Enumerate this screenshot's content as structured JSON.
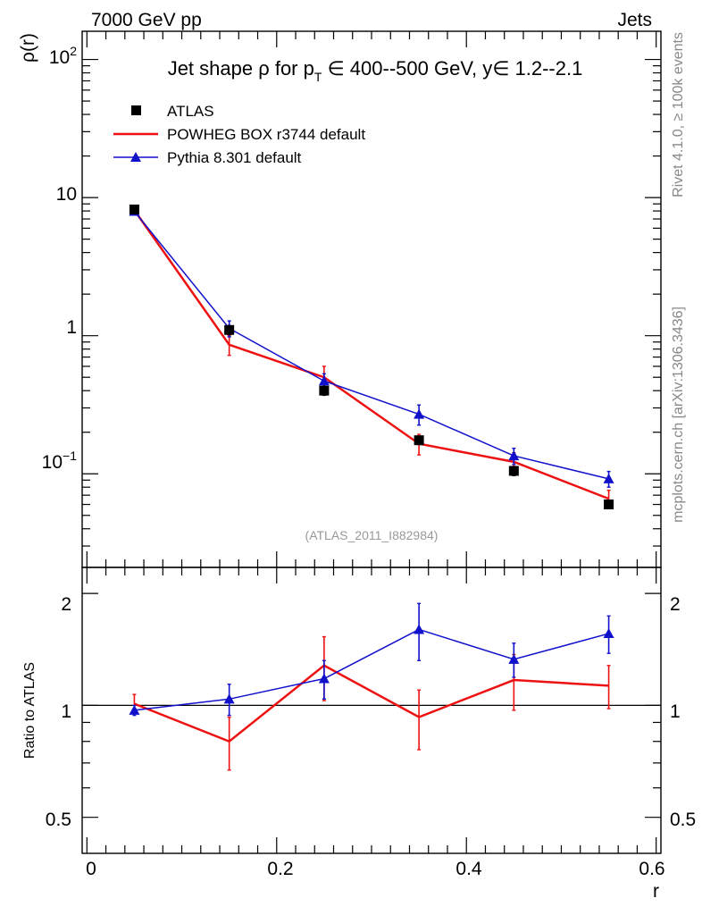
{
  "header": {
    "energy_label": "7000 GeV pp",
    "category_label": "Jets"
  },
  "side_notes": {
    "rivet": "Rivet 4.1.0, ≥ 100k events",
    "mcplots": "mcplots.cern.ch [arXiv:1306.3436]"
  },
  "colors": {
    "atlas": "#000000",
    "powheg": "#ee1111",
    "pythia": "#1111cc"
  },
  "chart_data": [
    {
      "type": "line",
      "title": "Jet shape ρ for p_T ∈ 400--500 GeV, y∈ 1.2--2.1",
      "title_parts": {
        "a": "Jet shape ",
        "rho": "ρ",
        "b": " for p",
        "sub": "T",
        "c": " ∈ 400--500 GeV, y∈ 1.2--2.1"
      },
      "ylabel": "ρ(r)",
      "yscale": "log",
      "ylim": [
        0.021,
        160
      ],
      "xlim": [
        -0.005,
        0.605
      ],
      "yticks": [
        {
          "value": 100,
          "base": "10",
          "exp": "2"
        },
        {
          "value": 10,
          "base": "10",
          "exp": ""
        },
        {
          "value": 1,
          "base": "1",
          "exp": ""
        },
        {
          "value": 0.1,
          "base": "10",
          "exp": "−1"
        }
      ],
      "watermark": "(ATLAS_2011_I882984)",
      "legend_position": "top-left",
      "x": [
        0.05,
        0.15,
        0.25,
        0.35,
        0.45,
        0.55
      ],
      "series": [
        {
          "name": "ATLAS",
          "key": "atlas",
          "marker": "square",
          "line": false,
          "values": [
            8.2,
            1.1,
            0.4,
            0.175,
            0.105,
            0.06
          ],
          "err_low": [
            0.3,
            0.08,
            0.03,
            0.012,
            0.008,
            0.004
          ],
          "err_high": [
            0.3,
            0.08,
            0.03,
            0.012,
            0.008,
            0.004
          ]
        },
        {
          "name": "POWHEG BOX r3744 default",
          "key": "powheg",
          "marker": "none",
          "line": true,
          "values": [
            8.1,
            0.86,
            0.5,
            0.165,
            0.122,
            0.066
          ],
          "err_low": [
            0.4,
            0.14,
            0.1,
            0.028,
            0.02,
            0.01
          ],
          "err_high": [
            0.4,
            0.14,
            0.1,
            0.028,
            0.02,
            0.01
          ]
        },
        {
          "name": "Pythia 8.301 default",
          "key": "pythia",
          "marker": "triangle",
          "line": true,
          "values": [
            7.95,
            1.13,
            0.47,
            0.27,
            0.135,
            0.092
          ],
          "err_low": [
            0.3,
            0.15,
            0.06,
            0.045,
            0.018,
            0.012
          ],
          "err_high": [
            0.3,
            0.15,
            0.06,
            0.045,
            0.018,
            0.012
          ]
        }
      ]
    },
    {
      "type": "line",
      "ylabel": "Ratio to ATLAS",
      "xlabel": "r",
      "yscale": "log",
      "ylim": [
        0.4,
        2.35
      ],
      "xlim": [
        -0.005,
        0.605
      ],
      "yticks": [
        {
          "value": 2,
          "label": "2"
        },
        {
          "value": 1,
          "label": "1"
        },
        {
          "value": 0.5,
          "label": "0.5"
        }
      ],
      "xticks": [
        {
          "value": 0,
          "label": "0"
        },
        {
          "value": 0.2,
          "label": "0.2"
        },
        {
          "value": 0.4,
          "label": "0.4"
        },
        {
          "value": 0.6,
          "label": "0.6"
        }
      ],
      "reference_line": 1,
      "x": [
        0.05,
        0.15,
        0.25,
        0.35,
        0.45,
        0.55
      ],
      "series": [
        {
          "name": "POWHEG BOX r3744 default",
          "key": "powheg",
          "marker": "none",
          "values": [
            1.01,
            0.8,
            1.28,
            0.93,
            1.17,
            1.13
          ],
          "err_low": [
            0.06,
            0.13,
            0.25,
            0.17,
            0.2,
            0.15
          ],
          "err_high": [
            0.06,
            0.13,
            0.25,
            0.17,
            0.2,
            0.15
          ]
        },
        {
          "name": "Pythia 8.301 default",
          "key": "pythia",
          "marker": "triangle",
          "values": [
            0.97,
            1.04,
            1.18,
            1.6,
            1.33,
            1.56
          ],
          "err_low": [
            0.03,
            0.1,
            0.14,
            0.28,
            0.14,
            0.18
          ],
          "err_high": [
            0.03,
            0.1,
            0.14,
            0.28,
            0.14,
            0.18
          ]
        }
      ]
    }
  ]
}
